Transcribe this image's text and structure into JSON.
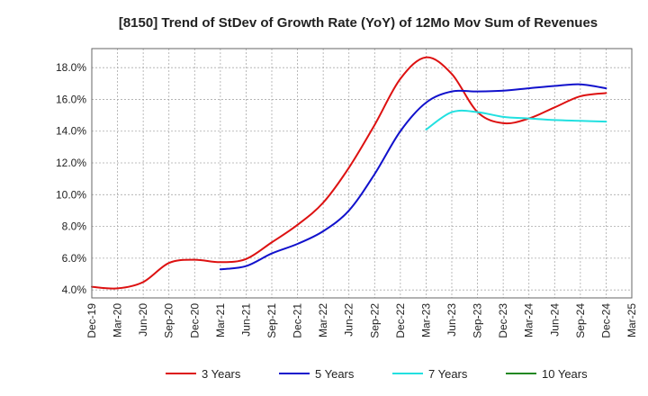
{
  "chart_data": {
    "type": "line",
    "title": "[8150]  Trend of StDev of Growth Rate (YoY) of 12Mo Mov Sum of Revenues",
    "xlabel": "",
    "ylabel": "",
    "categories": [
      "Dec-19",
      "Mar-20",
      "Jun-20",
      "Sep-20",
      "Dec-20",
      "Mar-21",
      "Jun-21",
      "Sep-21",
      "Dec-21",
      "Mar-22",
      "Jun-22",
      "Sep-22",
      "Dec-22",
      "Mar-23",
      "Jun-23",
      "Sep-23",
      "Dec-23",
      "Mar-24",
      "Jun-24",
      "Sep-24",
      "Dec-24",
      "Mar-25"
    ],
    "y_ticks": [
      "4.0%",
      "6.0%",
      "8.0%",
      "10.0%",
      "12.0%",
      "14.0%",
      "16.0%",
      "18.0%"
    ],
    "y_tick_values": [
      4,
      6,
      8,
      10,
      12,
      14,
      16,
      18
    ],
    "ylim": [
      3.5,
      19.2
    ],
    "grid": true,
    "legend_position": "bottom",
    "series": [
      {
        "name": "3 Years",
        "color": "#dd1111",
        "values": [
          4.2,
          4.1,
          4.5,
          5.7,
          5.9,
          5.75,
          5.95,
          7.0,
          8.1,
          9.5,
          11.7,
          14.4,
          17.3,
          18.65,
          17.6,
          15.2,
          14.5,
          14.8,
          15.5,
          16.2,
          16.4,
          null
        ]
      },
      {
        "name": "5 Years",
        "color": "#1111cc",
        "values": [
          null,
          null,
          null,
          null,
          null,
          5.3,
          5.5,
          6.3,
          6.9,
          7.7,
          9.0,
          11.3,
          14.0,
          15.8,
          16.5,
          16.5,
          16.55,
          16.7,
          16.85,
          16.95,
          16.7,
          null
        ]
      },
      {
        "name": "7 Years",
        "color": "#22e0e0",
        "values": [
          null,
          null,
          null,
          null,
          null,
          null,
          null,
          null,
          null,
          null,
          null,
          null,
          null,
          14.1,
          15.2,
          15.2,
          14.9,
          14.8,
          14.7,
          14.65,
          14.6,
          null
        ]
      },
      {
        "name": "10 Years",
        "color": "#228822",
        "values": [
          null,
          null,
          null,
          null,
          null,
          null,
          null,
          null,
          null,
          null,
          null,
          null,
          null,
          null,
          null,
          null,
          null,
          null,
          null,
          null,
          null,
          null
        ]
      }
    ]
  }
}
